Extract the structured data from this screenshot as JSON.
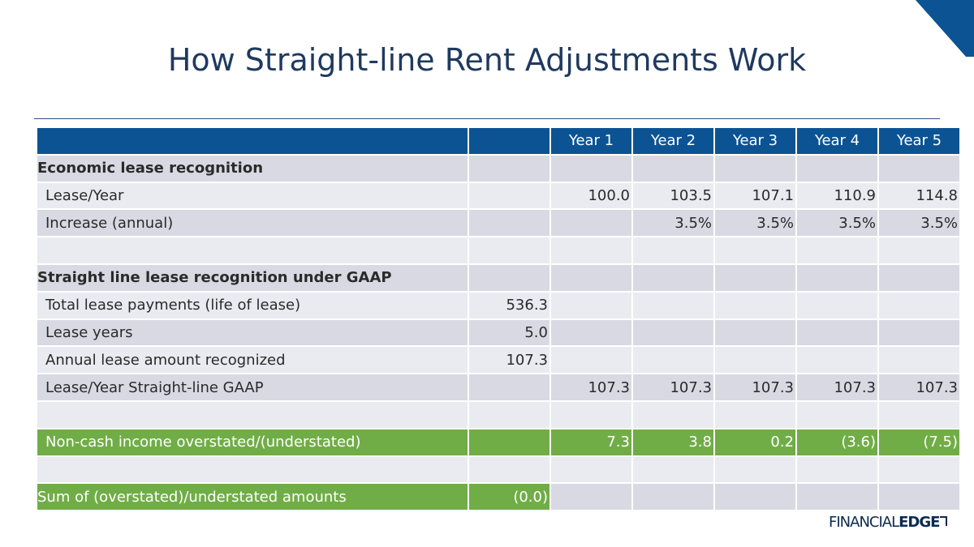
{
  "title": "How Straight-line Rent Adjustments Work",
  "colors": {
    "header_blue": "#0c5393",
    "row_grey": "#d8d9e3",
    "row_light": "#eaebf1",
    "green": "#70ad47",
    "title": "#1f3a5f"
  },
  "header": {
    "years": [
      "Year 1",
      "Year 2",
      "Year 3",
      "Year 4",
      "Year 5"
    ]
  },
  "rows": [
    {
      "label": "Economic lease recognition",
      "total": "",
      "values": [
        "",
        "",
        "",
        "",
        ""
      ]
    },
    {
      "label": "Lease/Year",
      "total": "",
      "values": [
        "100.0",
        "103.5",
        "107.1",
        "110.9",
        "114.8"
      ]
    },
    {
      "label": "Increase (annual)",
      "total": "",
      "values": [
        "",
        "3.5%",
        "3.5%",
        "3.5%",
        "3.5%"
      ]
    },
    {
      "label": "",
      "total": "",
      "values": [
        "",
        "",
        "",
        "",
        ""
      ]
    },
    {
      "label": "Straight line lease recognition under GAAP",
      "total": "",
      "values": [
        "",
        "",
        "",
        "",
        ""
      ]
    },
    {
      "label": "Total lease payments (life of lease)",
      "total": "536.3",
      "values": [
        "",
        "",
        "",
        "",
        ""
      ]
    },
    {
      "label": "Lease years",
      "total": "5.0",
      "values": [
        "",
        "",
        "",
        "",
        ""
      ]
    },
    {
      "label": "Annual lease amount recognized",
      "total": "107.3",
      "values": [
        "",
        "",
        "",
        "",
        ""
      ]
    },
    {
      "label": "Lease/Year Straight-line GAAP",
      "total": "",
      "values": [
        "107.3",
        "107.3",
        "107.3",
        "107.3",
        "107.3"
      ]
    },
    {
      "label": "",
      "total": "",
      "values": [
        "",
        "",
        "",
        "",
        ""
      ]
    },
    {
      "label": "Non-cash income overstated/(understated)",
      "total": "",
      "values": [
        "7.3",
        "3.8",
        "0.2",
        "(3.6)",
        "(7.5)"
      ]
    },
    {
      "label": "",
      "total": "",
      "values": [
        "",
        "",
        "",
        "",
        ""
      ]
    },
    {
      "label": "Sum of (overstated)/understated amounts",
      "total": "(0.0)",
      "values": [
        "",
        "",
        "",
        "",
        ""
      ]
    }
  ],
  "logo": {
    "part1": "FINANCIAL",
    "part2": "EDGE"
  }
}
